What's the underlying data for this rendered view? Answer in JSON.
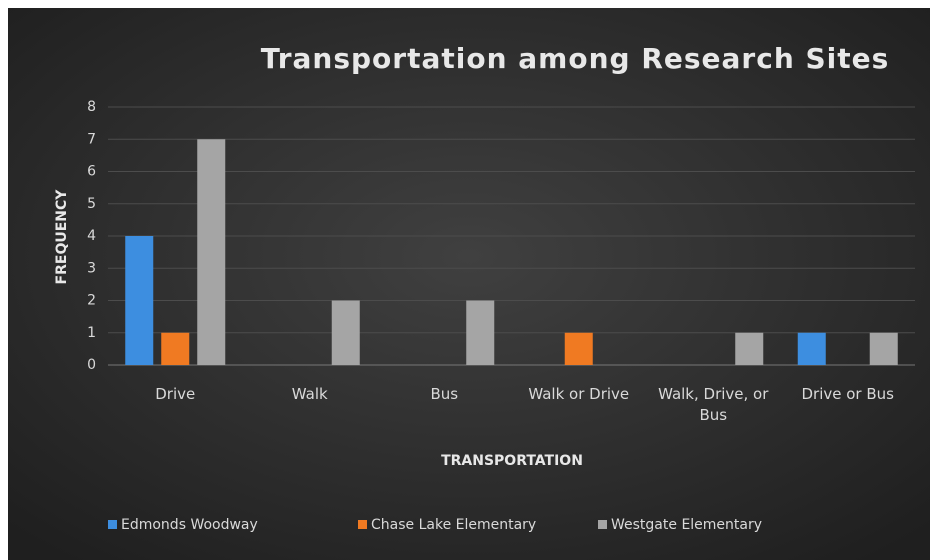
{
  "chart_data": {
    "type": "bar",
    "title": "Transportation among Research Sites",
    "x_label": "TRANSPORTATION",
    "y_label": "FREQUENCY",
    "categories": [
      "Drive",
      "Walk",
      "Bus",
      "Walk or Drive",
      "Walk, Drive, or Bus",
      "Drive or Bus"
    ],
    "series": [
      {
        "name": "Edmonds Woodway",
        "color": "#3d8ee0",
        "values": [
          4,
          0,
          0,
          0,
          0,
          1
        ]
      },
      {
        "name": "Chase Lake Elementary",
        "color": "#f07a22",
        "values": [
          1,
          0,
          0,
          1,
          0,
          0
        ]
      },
      {
        "name": "Westgate Elementary",
        "color": "#a5a5a5",
        "values": [
          7,
          2,
          2,
          0,
          1,
          1
        ]
      }
    ],
    "ylim": [
      0,
      8
    ],
    "yticks": [
      0,
      1,
      2,
      3,
      4,
      5,
      6,
      7,
      8
    ],
    "grid": true,
    "legend": "bottom"
  }
}
